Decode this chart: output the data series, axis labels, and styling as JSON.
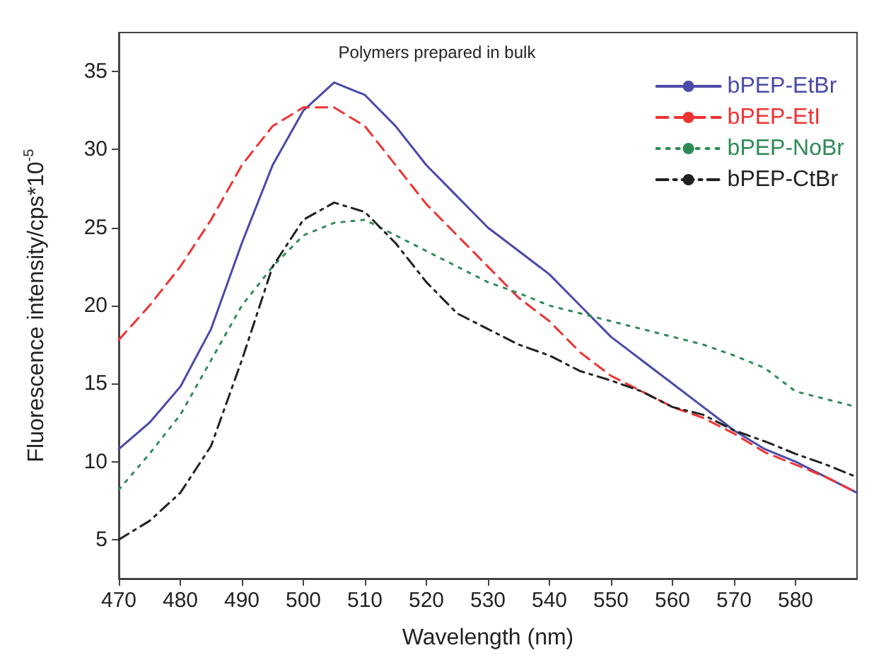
{
  "chart_data": {
    "type": "line",
    "title": "Polymers prepared in bulk",
    "xlabel": "Wavelength (nm)",
    "ylabel": "Fluorescence intensity/cps*10$^{-5}$",
    "x": [
      470,
      475,
      480,
      485,
      490,
      495,
      500,
      505,
      510,
      515,
      520,
      525,
      530,
      535,
      540,
      545,
      550,
      555,
      560,
      565,
      570,
      575,
      580,
      585,
      590
    ],
    "series": [
      {
        "name": "bPEP-EtBr",
        "color": "#4a4aa8",
        "line_style": "solid",
        "values": [
          10.8,
          12.5,
          14.8,
          18.5,
          24,
          29,
          32.5,
          34.3,
          33.5,
          31.5,
          29,
          27,
          25,
          23.5,
          22,
          20,
          18,
          16.5,
          15,
          13.5,
          12,
          10.8,
          10,
          9,
          8
        ]
      },
      {
        "name": "bPEP-EtI",
        "color": "#ee3333",
        "line_style": "dashed",
        "values": [
          17.8,
          20,
          22.5,
          25.5,
          29,
          31.5,
          32.7,
          32.7,
          31.5,
          29,
          26.5,
          24.5,
          22.5,
          20.5,
          19,
          17,
          15.5,
          14.5,
          13.5,
          12.8,
          11.8,
          10.6,
          9.8,
          9,
          8
        ]
      },
      {
        "name": "bPEP-NoBr",
        "color": "#2e8b57",
        "line_style": "dotted",
        "values": [
          8.2,
          10.5,
          13,
          16.5,
          20,
          22.5,
          24.5,
          25.3,
          25.5,
          24.5,
          23.5,
          22.5,
          21.5,
          20.8,
          20,
          19.5,
          19,
          18.5,
          18,
          17.5,
          16.8,
          16,
          14.5,
          14,
          13.5
        ]
      },
      {
        "name": "bPEP-CtBr",
        "color": "#222222",
        "line_style": "dashdot",
        "values": [
          5,
          6.2,
          8,
          11,
          16.5,
          22.5,
          25.5,
          26.6,
          26,
          24,
          21.5,
          19.5,
          18.5,
          17.5,
          16.8,
          15.8,
          15.2,
          14.5,
          13.5,
          13,
          12,
          11.3,
          10.5,
          9.8,
          9
        ]
      }
    ],
    "xlim": [
      470,
      590
    ],
    "xticks": [
      470,
      480,
      490,
      500,
      510,
      520,
      530,
      540,
      550,
      560,
      570,
      580
    ],
    "ylim": [
      2.5,
      37.5
    ],
    "yticks": [
      5,
      10,
      15,
      20,
      25,
      30,
      35
    ],
    "grid": false,
    "legend": "top right",
    "marker": "none"
  }
}
